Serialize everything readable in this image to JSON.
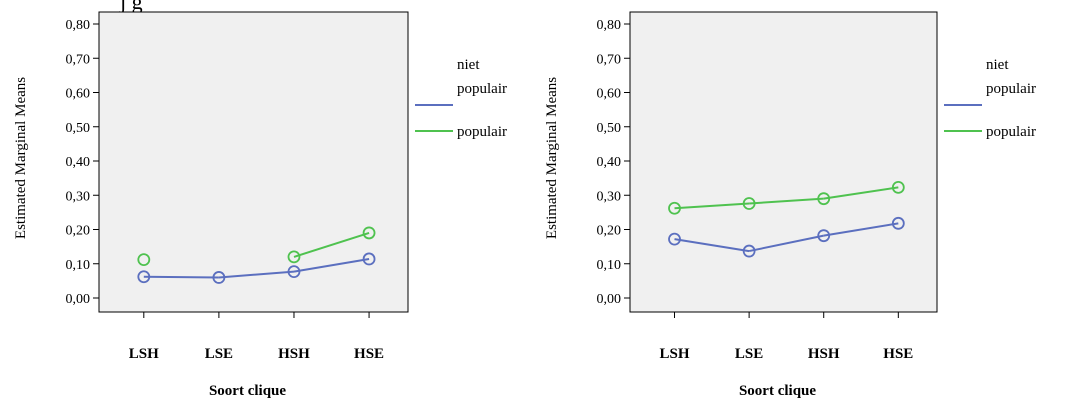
{
  "header": {
    "cut_text": "j g"
  },
  "chart_data": [
    {
      "type": "line",
      "categories": [
        "LSH",
        "LSE",
        "HSH",
        "HSE"
      ],
      "xlabel": "Soort clique",
      "ylabel": "Estimated Marginal Means",
      "ylim": [
        0,
        0.8
      ],
      "yticks": [
        "0,00",
        "0,10",
        "0,20",
        "0,30",
        "0,40",
        "0,50",
        "0,60",
        "0,70",
        "0,80"
      ],
      "grid": false,
      "legend_position": "right",
      "series": [
        {
          "name": "niet populair",
          "legend_lines": [
            "niet",
            "populair"
          ],
          "color": "#5b6fbf",
          "values": [
            0.062,
            0.06,
            0.077,
            0.114
          ]
        },
        {
          "name": "populair",
          "legend_lines": [
            "populair"
          ],
          "color": "#4fc24f",
          "values": [
            0.112,
            null,
            0.12,
            0.19
          ]
        }
      ]
    },
    {
      "type": "line",
      "categories": [
        "LSH",
        "LSE",
        "HSH",
        "HSE"
      ],
      "xlabel": "Soort clique",
      "ylabel": "Estimated Marginal Means",
      "ylim": [
        0,
        0.8
      ],
      "yticks": [
        "0,00",
        "0,10",
        "0,20",
        "0,30",
        "0,40",
        "0,50",
        "0,60",
        "0,70",
        "0,80"
      ],
      "grid": false,
      "legend_position": "right",
      "series": [
        {
          "name": "niet populair",
          "legend_lines": [
            "niet",
            "populair"
          ],
          "color": "#5b6fbf",
          "values": [
            0.172,
            0.137,
            0.182,
            0.218
          ]
        },
        {
          "name": "populair",
          "legend_lines": [
            "populair"
          ],
          "color": "#4fc24f",
          "values": [
            0.262,
            0.276,
            0.29,
            0.323
          ]
        }
      ]
    }
  ],
  "styles": {
    "plot_background": "#f0f0f0",
    "axis_color": "#000000"
  }
}
